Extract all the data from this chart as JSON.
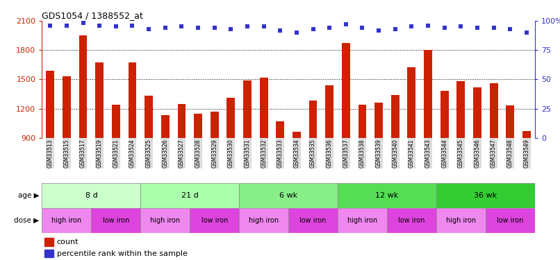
{
  "title": "GDS1054 / 1388552_at",
  "samples": [
    "GSM33513",
    "GSM33515",
    "GSM33517",
    "GSM33519",
    "GSM33521",
    "GSM33524",
    "GSM33525",
    "GSM33526",
    "GSM33527",
    "GSM33528",
    "GSM33529",
    "GSM33530",
    "GSM33531",
    "GSM33532",
    "GSM33533",
    "GSM33534",
    "GSM33535",
    "GSM33536",
    "GSM33537",
    "GSM33538",
    "GSM33539",
    "GSM33540",
    "GSM33541",
    "GSM33543",
    "GSM33544",
    "GSM33545",
    "GSM33546",
    "GSM33547",
    "GSM33548",
    "GSM33549"
  ],
  "counts": [
    1590,
    1530,
    1950,
    1670,
    1240,
    1670,
    1330,
    1130,
    1250,
    1150,
    1170,
    1310,
    1490,
    1520,
    1070,
    960,
    1280,
    1440,
    1870,
    1240,
    1260,
    1340,
    1620,
    1800,
    1380,
    1480,
    1420,
    1460,
    1230,
    970
  ],
  "percentiles": [
    96,
    96,
    98,
    96,
    95,
    96,
    93,
    94,
    95,
    94,
    94,
    93,
    95,
    95,
    92,
    90,
    93,
    94,
    97,
    94,
    92,
    93,
    95,
    96,
    94,
    95,
    94,
    94,
    93,
    90
  ],
  "ylim_left": [
    900,
    2100
  ],
  "ylim_right": [
    0,
    100
  ],
  "yticks_left": [
    900,
    1200,
    1500,
    1800,
    2100
  ],
  "yticks_right": [
    0,
    25,
    50,
    75,
    100
  ],
  "bar_color": "#cc2200",
  "dot_color": "#3333cc",
  "gridline_y": [
    1200,
    1500,
    1800
  ],
  "age_groups": [
    {
      "label": "8 d",
      "start": 0,
      "end": 6,
      "color": "#ccffcc"
    },
    {
      "label": "21 d",
      "start": 6,
      "end": 12,
      "color": "#aaffaa"
    },
    {
      "label": "6 wk",
      "start": 12,
      "end": 18,
      "color": "#88ee88"
    },
    {
      "label": "12 wk",
      "start": 18,
      "end": 24,
      "color": "#55dd55"
    },
    {
      "label": "36 wk",
      "start": 24,
      "end": 30,
      "color": "#33cc33"
    }
  ],
  "dose_groups": [
    {
      "label": "high iron",
      "start": 0,
      "end": 3,
      "color": "#ee88ee"
    },
    {
      "label": "low iron",
      "start": 3,
      "end": 6,
      "color": "#dd44dd"
    },
    {
      "label": "high iron",
      "start": 6,
      "end": 9,
      "color": "#ee88ee"
    },
    {
      "label": "low iron",
      "start": 9,
      "end": 12,
      "color": "#dd44dd"
    },
    {
      "label": "high iron",
      "start": 12,
      "end": 15,
      "color": "#ee88ee"
    },
    {
      "label": "low iron",
      "start": 15,
      "end": 18,
      "color": "#dd44dd"
    },
    {
      "label": "high iron",
      "start": 18,
      "end": 21,
      "color": "#ee88ee"
    },
    {
      "label": "low iron",
      "start": 21,
      "end": 24,
      "color": "#dd44dd"
    },
    {
      "label": "high iron",
      "start": 24,
      "end": 27,
      "color": "#ee88ee"
    },
    {
      "label": "low iron",
      "start": 27,
      "end": 30,
      "color": "#dd44dd"
    }
  ]
}
